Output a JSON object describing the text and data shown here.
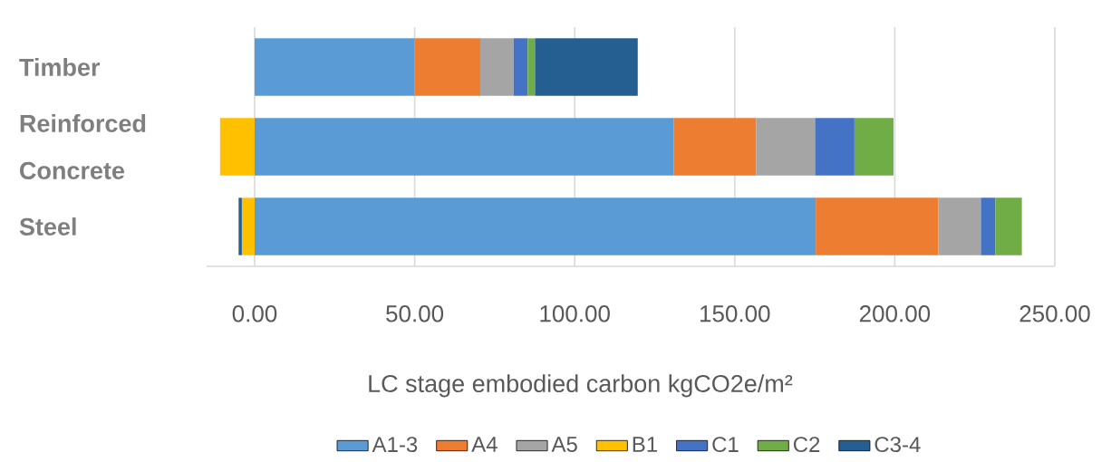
{
  "chart_data": {
    "type": "bar",
    "orientation": "horizontal",
    "stacked": true,
    "categories": [
      "Timber",
      "Reinforced Concrete",
      "Steel"
    ],
    "series": [
      {
        "name": "A1-3",
        "color": "#5b9bd5",
        "values": [
          50.0,
          131.0,
          175.3
        ]
      },
      {
        "name": "A4",
        "color": "#ed7d31",
        "values": [
          20.5,
          25.7,
          38.3
        ]
      },
      {
        "name": "A5",
        "color": "#a5a5a5",
        "values": [
          10.4,
          18.4,
          13.3
        ]
      },
      {
        "name": "B1",
        "color": "#ffc000",
        "values": [
          null,
          -10.8,
          -4.0
        ]
      },
      {
        "name": "C1",
        "color": "#4472c4",
        "values": [
          4.4,
          12.3,
          4.5
        ]
      },
      {
        "name": "C2",
        "color": "#70ad47",
        "values": [
          2.3,
          12.2,
          8.3
        ]
      },
      {
        "name": "C3-4",
        "color": "#255e91",
        "values": [
          32.1,
          null,
          -1.0
        ]
      }
    ],
    "xlabel": "LC stage embodied carbon kgCO2e/m²",
    "xlim": [
      -15,
      250
    ],
    "xticks": [
      {
        "value": 0,
        "label": "0.00"
      },
      {
        "value": 50,
        "label": "50.00"
      },
      {
        "value": 100,
        "label": "100.00"
      },
      {
        "value": 150,
        "label": "150.00"
      },
      {
        "value": 200,
        "label": "200.00"
      },
      {
        "value": 250,
        "label": "250.00"
      }
    ],
    "grid": "x",
    "legend": "bottom"
  }
}
